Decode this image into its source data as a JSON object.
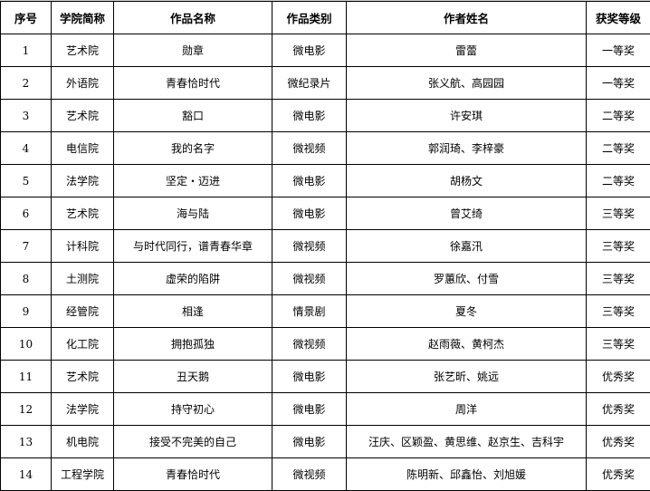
{
  "headers": [
    "序号",
    "学院简称",
    "作品名称",
    "作品类别",
    "作者姓名",
    "获奖等级"
  ],
  "rows": [
    [
      "1",
      "艺术院",
      "勋章",
      "微电影",
      "雷蕾",
      "一等奖"
    ],
    [
      "2",
      "外语院",
      "青春恰时代",
      "微纪录片",
      "张义航、高园园",
      "一等奖"
    ],
    [
      "3",
      "艺术院",
      "豁口",
      "微电影",
      "许安琪",
      "二等奖"
    ],
    [
      "4",
      "电信院",
      "我的名字",
      "微视频",
      "郭润琦、李梓豪",
      "二等奖"
    ],
    [
      "5",
      "法学院",
      "坚定・迈进",
      "微电影",
      "胡杨文",
      "二等奖"
    ],
    [
      "6",
      "艺术院",
      "海与陆",
      "微电影",
      "曾艾绮",
      "三等奖"
    ],
    [
      "7",
      "计科院",
      "与时代同行，谱青春华章",
      "微视频",
      "徐嘉汛",
      "三等奖"
    ],
    [
      "8",
      "土测院",
      "虚荣的陷阱",
      "微视频",
      "罗蕙欣、付雪",
      "三等奖"
    ],
    [
      "9",
      "经管院",
      "相逢",
      "情景剧",
      "夏冬",
      "三等奖"
    ],
    [
      "10",
      "化工院",
      "拥抱孤独",
      "微视频",
      "赵雨薇、黄柯杰",
      "三等奖"
    ],
    [
      "11",
      "艺术院",
      "丑天鹅",
      "微电影",
      "张艺昕、姚远",
      "优秀奖"
    ],
    [
      "12",
      "法学院",
      "持守初心",
      "微电影",
      "周洋",
      "优秀奖"
    ],
    [
      "13",
      "机电院",
      "接受不完美的自己",
      "微电影",
      "汪庆、区颖盈、黄思维、赵京生、吉科宇",
      "优秀奖"
    ],
    [
      "14",
      "工程学院",
      "青春恰时代",
      "微视频",
      "陈明新、邱鑫怡、刘旭媛",
      "优秀奖"
    ]
  ]
}
